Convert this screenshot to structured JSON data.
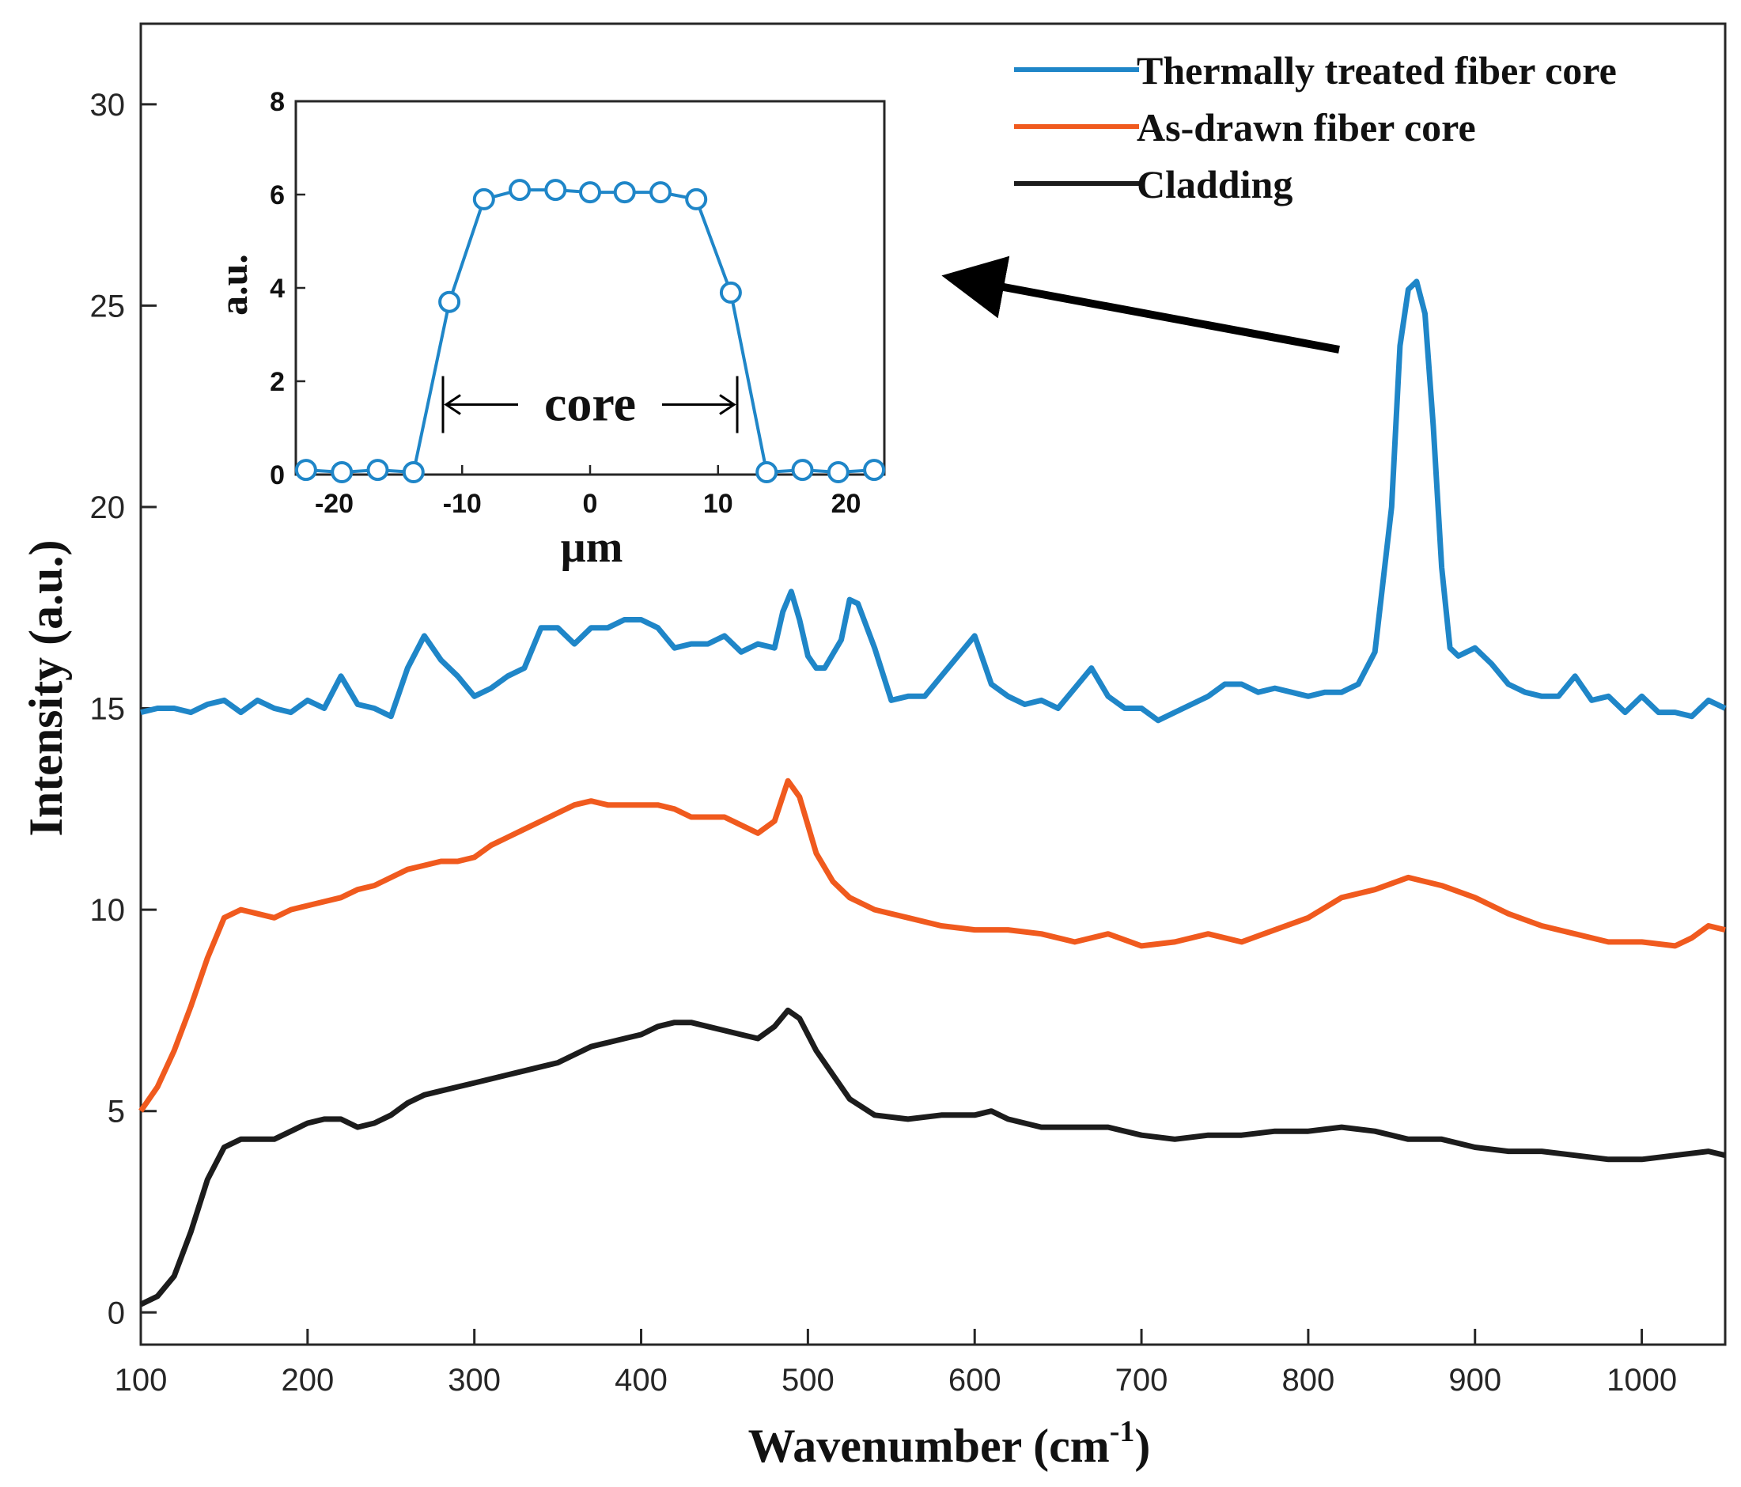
{
  "chart_data": [
    {
      "type": "line",
      "title": "",
      "xlabel": "Wavenumber (cm",
      "xlabel_superscript": "-1",
      "xlabel_close": ")",
      "ylabel": "Intensity (a.u.)",
      "xlim": [
        100,
        1050
      ],
      "ylim": [
        -0.8,
        32
      ],
      "xticks": [
        100,
        200,
        300,
        400,
        500,
        600,
        700,
        800,
        900,
        1000
      ],
      "yticks": [
        0,
        5,
        10,
        15,
        20,
        25,
        30
      ],
      "legend_position": "top-right",
      "series": [
        {
          "name": "Thermally treated fiber core",
          "color": "#1f86c8",
          "points": [
            [
              100,
              14.9
            ],
            [
              110,
              15.0
            ],
            [
              120,
              15.0
            ],
            [
              130,
              14.9
            ],
            [
              140,
              15.1
            ],
            [
              150,
              15.2
            ],
            [
              160,
              14.9
            ],
            [
              170,
              15.2
            ],
            [
              180,
              15.0
            ],
            [
              190,
              14.9
            ],
            [
              200,
              15.2
            ],
            [
              210,
              15.0
            ],
            [
              220,
              15.8
            ],
            [
              230,
              15.1
            ],
            [
              240,
              15.0
            ],
            [
              250,
              14.8
            ],
            [
              260,
              16.0
            ],
            [
              270,
              16.8
            ],
            [
              280,
              16.2
            ],
            [
              290,
              15.8
            ],
            [
              300,
              15.3
            ],
            [
              310,
              15.5
            ],
            [
              320,
              15.8
            ],
            [
              330,
              16.0
            ],
            [
              340,
              17.0
            ],
            [
              350,
              17.0
            ],
            [
              360,
              16.6
            ],
            [
              370,
              17.0
            ],
            [
              380,
              17.0
            ],
            [
              390,
              17.2
            ],
            [
              400,
              17.2
            ],
            [
              410,
              17.0
            ],
            [
              420,
              16.5
            ],
            [
              430,
              16.6
            ],
            [
              440,
              16.6
            ],
            [
              450,
              16.8
            ],
            [
              460,
              16.4
            ],
            [
              470,
              16.6
            ],
            [
              480,
              16.5
            ],
            [
              485,
              17.4
            ],
            [
              490,
              17.9
            ],
            [
              495,
              17.2
            ],
            [
              500,
              16.3
            ],
            [
              505,
              16.0
            ],
            [
              510,
              16.0
            ],
            [
              520,
              16.7
            ],
            [
              525,
              17.7
            ],
            [
              530,
              17.6
            ],
            [
              540,
              16.5
            ],
            [
              550,
              15.2
            ],
            [
              560,
              15.3
            ],
            [
              570,
              15.3
            ],
            [
              580,
              15.8
            ],
            [
              590,
              16.3
            ],
            [
              600,
              16.8
            ],
            [
              610,
              15.6
            ],
            [
              620,
              15.3
            ],
            [
              630,
              15.1
            ],
            [
              640,
              15.2
            ],
            [
              650,
              15.0
            ],
            [
              660,
              15.5
            ],
            [
              670,
              16.0
            ],
            [
              680,
              15.3
            ],
            [
              690,
              15.0
            ],
            [
              700,
              15.0
            ],
            [
              710,
              14.7
            ],
            [
              720,
              14.9
            ],
            [
              730,
              15.1
            ],
            [
              740,
              15.3
            ],
            [
              750,
              15.6
            ],
            [
              760,
              15.6
            ],
            [
              770,
              15.4
            ],
            [
              780,
              15.5
            ],
            [
              790,
              15.4
            ],
            [
              800,
              15.3
            ],
            [
              810,
              15.4
            ],
            [
              820,
              15.4
            ],
            [
              830,
              15.6
            ],
            [
              840,
              16.4
            ],
            [
              850,
              20.0
            ],
            [
              855,
              24.0
            ],
            [
              860,
              25.4
            ],
            [
              865,
              25.6
            ],
            [
              870,
              24.8
            ],
            [
              875,
              22.0
            ],
            [
              880,
              18.5
            ],
            [
              885,
              16.5
            ],
            [
              890,
              16.3
            ],
            [
              900,
              16.5
            ],
            [
              910,
              16.1
            ],
            [
              920,
              15.6
            ],
            [
              930,
              15.4
            ],
            [
              940,
              15.3
            ],
            [
              950,
              15.3
            ],
            [
              960,
              15.8
            ],
            [
              970,
              15.2
            ],
            [
              980,
              15.3
            ],
            [
              990,
              14.9
            ],
            [
              1000,
              15.3
            ],
            [
              1010,
              14.9
            ],
            [
              1020,
              14.9
            ],
            [
              1030,
              14.8
            ],
            [
              1040,
              15.2
            ],
            [
              1050,
              15.0
            ]
          ]
        },
        {
          "name": "As-drawn fiber core",
          "color": "#f05a1e",
          "points": [
            [
              100,
              5.0
            ],
            [
              110,
              5.6
            ],
            [
              120,
              6.5
            ],
            [
              130,
              7.6
            ],
            [
              140,
              8.8
            ],
            [
              150,
              9.8
            ],
            [
              160,
              10.0
            ],
            [
              170,
              9.9
            ],
            [
              180,
              9.8
            ],
            [
              190,
              10.0
            ],
            [
              200,
              10.1
            ],
            [
              210,
              10.2
            ],
            [
              220,
              10.3
            ],
            [
              230,
              10.5
            ],
            [
              240,
              10.6
            ],
            [
              250,
              10.8
            ],
            [
              260,
              11.0
            ],
            [
              270,
              11.1
            ],
            [
              280,
              11.2
            ],
            [
              290,
              11.2
            ],
            [
              300,
              11.3
            ],
            [
              310,
              11.6
            ],
            [
              320,
              11.8
            ],
            [
              330,
              12.0
            ],
            [
              340,
              12.2
            ],
            [
              350,
              12.4
            ],
            [
              360,
              12.6
            ],
            [
              370,
              12.7
            ],
            [
              380,
              12.6
            ],
            [
              390,
              12.6
            ],
            [
              400,
              12.6
            ],
            [
              410,
              12.6
            ],
            [
              420,
              12.5
            ],
            [
              430,
              12.3
            ],
            [
              440,
              12.3
            ],
            [
              450,
              12.3
            ],
            [
              460,
              12.1
            ],
            [
              470,
              11.9
            ],
            [
              480,
              12.2
            ],
            [
              488,
              13.2
            ],
            [
              495,
              12.8
            ],
            [
              505,
              11.4
            ],
            [
              515,
              10.7
            ],
            [
              525,
              10.3
            ],
            [
              540,
              10.0
            ],
            [
              560,
              9.8
            ],
            [
              580,
              9.6
            ],
            [
              600,
              9.5
            ],
            [
              620,
              9.5
            ],
            [
              640,
              9.4
            ],
            [
              660,
              9.2
            ],
            [
              680,
              9.4
            ],
            [
              700,
              9.1
            ],
            [
              720,
              9.2
            ],
            [
              740,
              9.4
            ],
            [
              760,
              9.2
            ],
            [
              780,
              9.5
            ],
            [
              800,
              9.8
            ],
            [
              820,
              10.3
            ],
            [
              840,
              10.5
            ],
            [
              860,
              10.8
            ],
            [
              880,
              10.6
            ],
            [
              900,
              10.3
            ],
            [
              920,
              9.9
            ],
            [
              940,
              9.6
            ],
            [
              960,
              9.4
            ],
            [
              980,
              9.2
            ],
            [
              1000,
              9.2
            ],
            [
              1020,
              9.1
            ],
            [
              1030,
              9.3
            ],
            [
              1040,
              9.6
            ],
            [
              1050,
              9.5
            ]
          ]
        },
        {
          "name": "Cladding",
          "color": "#1c1c1c",
          "points": [
            [
              100,
              0.2
            ],
            [
              110,
              0.4
            ],
            [
              120,
              0.9
            ],
            [
              130,
              2.0
            ],
            [
              140,
              3.3
            ],
            [
              150,
              4.1
            ],
            [
              160,
              4.3
            ],
            [
              170,
              4.3
            ],
            [
              180,
              4.3
            ],
            [
              190,
              4.5
            ],
            [
              200,
              4.7
            ],
            [
              210,
              4.8
            ],
            [
              220,
              4.8
            ],
            [
              230,
              4.6
            ],
            [
              240,
              4.7
            ],
            [
              250,
              4.9
            ],
            [
              260,
              5.2
            ],
            [
              270,
              5.4
            ],
            [
              280,
              5.5
            ],
            [
              290,
              5.6
            ],
            [
              300,
              5.7
            ],
            [
              310,
              5.8
            ],
            [
              320,
              5.9
            ],
            [
              330,
              6.0
            ],
            [
              340,
              6.1
            ],
            [
              350,
              6.2
            ],
            [
              360,
              6.4
            ],
            [
              370,
              6.6
            ],
            [
              380,
              6.7
            ],
            [
              390,
              6.8
            ],
            [
              400,
              6.9
            ],
            [
              410,
              7.1
            ],
            [
              420,
              7.2
            ],
            [
              430,
              7.2
            ],
            [
              440,
              7.1
            ],
            [
              450,
              7.0
            ],
            [
              460,
              6.9
            ],
            [
              470,
              6.8
            ],
            [
              480,
              7.1
            ],
            [
              488,
              7.5
            ],
            [
              495,
              7.3
            ],
            [
              505,
              6.5
            ],
            [
              515,
              5.9
            ],
            [
              525,
              5.3
            ],
            [
              540,
              4.9
            ],
            [
              560,
              4.8
            ],
            [
              580,
              4.9
            ],
            [
              600,
              4.9
            ],
            [
              610,
              5.0
            ],
            [
              620,
              4.8
            ],
            [
              640,
              4.6
            ],
            [
              660,
              4.6
            ],
            [
              680,
              4.6
            ],
            [
              700,
              4.4
            ],
            [
              720,
              4.3
            ],
            [
              740,
              4.4
            ],
            [
              760,
              4.4
            ],
            [
              780,
              4.5
            ],
            [
              800,
              4.5
            ],
            [
              820,
              4.6
            ],
            [
              840,
              4.5
            ],
            [
              860,
              4.3
            ],
            [
              880,
              4.3
            ],
            [
              900,
              4.1
            ],
            [
              920,
              4.0
            ],
            [
              940,
              4.0
            ],
            [
              960,
              3.9
            ],
            [
              980,
              3.8
            ],
            [
              1000,
              3.8
            ],
            [
              1020,
              3.9
            ],
            [
              1040,
              4.0
            ],
            [
              1050,
              3.9
            ]
          ]
        }
      ],
      "annotations": [
        "arrow from main peak near 865 cm-1 toward the inset"
      ]
    },
    {
      "type": "line",
      "role": "inset",
      "title": "",
      "xlabel": "µm",
      "ylabel": "a.u.",
      "xlim": [
        -23,
        23
      ],
      "ylim": [
        0,
        8
      ],
      "xticks": [
        -20,
        -10,
        0,
        10,
        20
      ],
      "yticks": [
        0,
        2,
        4,
        6,
        8
      ],
      "marker": "open-circle",
      "series": [
        {
          "name": "core profile",
          "color": "#1f86c8",
          "x": [
            -22.2,
            -19.4,
            -16.6,
            -13.8,
            -11.0,
            -8.3,
            -5.5,
            -2.7,
            0,
            2.7,
            5.5,
            8.3,
            11.0,
            13.8,
            16.6,
            19.4,
            22.2
          ],
          "y": [
            0.1,
            0.05,
            0.1,
            0.05,
            3.7,
            5.9,
            6.1,
            6.1,
            6.05,
            6.05,
            6.05,
            5.9,
            3.9,
            0.05,
            0.1,
            0.05,
            0.1
          ]
        }
      ],
      "annotation_label": "core",
      "annotation_span": [
        -11.5,
        11.5
      ]
    }
  ]
}
